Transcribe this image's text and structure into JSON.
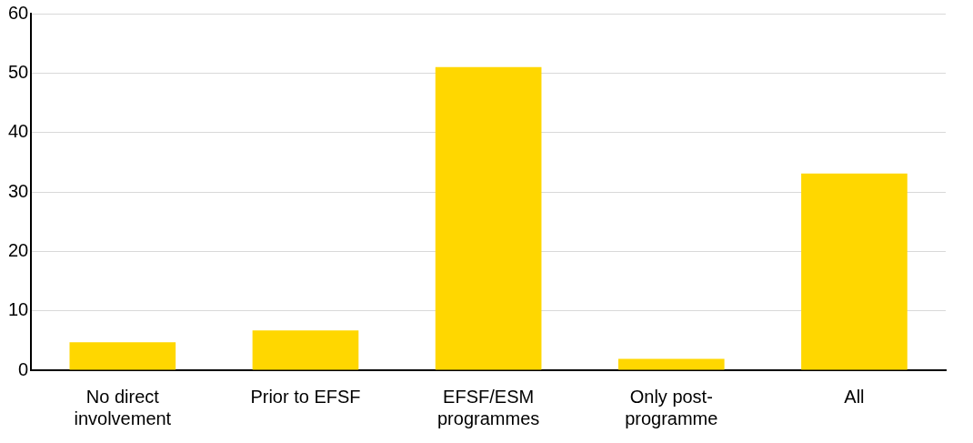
{
  "chart_data": {
    "type": "bar",
    "categories": [
      "No direct involvement",
      "Prior to EFSF",
      "EFSF/ESM programmes",
      "Only post-programme",
      "All"
    ],
    "values": [
      4.7,
      6.7,
      51,
      1.9,
      33.1
    ],
    "color": "#ffd700",
    "ylim": [
      0,
      60
    ],
    "yticks": [
      0,
      10,
      20,
      30,
      40,
      50,
      60
    ],
    "grid": "y",
    "legend": false
  }
}
